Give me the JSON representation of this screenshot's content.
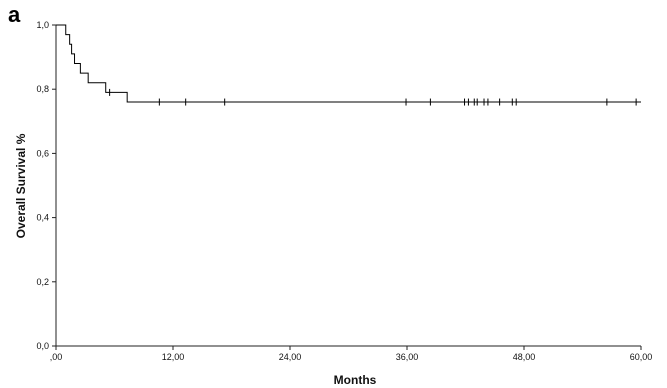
{
  "panel_label": "a",
  "chart_data": {
    "type": "line",
    "subtype": "kaplan-meier step",
    "title": "",
    "xlabel": "Months",
    "ylabel": "Overall Survival %",
    "xlim": [
      0,
      60
    ],
    "ylim": [
      0,
      1
    ],
    "x_ticks": [
      0,
      12,
      24,
      36,
      48,
      60
    ],
    "x_tick_labels": [
      ",00",
      "12,00",
      "24,00",
      "36,00",
      "48,00",
      "60,00"
    ],
    "y_ticks": [
      0,
      0.2,
      0.4,
      0.6,
      0.8,
      1.0
    ],
    "y_tick_labels": [
      "0,0",
      "0,2",
      "0,4",
      "0,6",
      "0,8",
      "1,0"
    ],
    "grid": false,
    "legend": "none",
    "line_color": "#000000",
    "steps": [
      {
        "x": 0.0,
        "y": 1.0
      },
      {
        "x": 1.0,
        "y": 0.97
      },
      {
        "x": 1.4,
        "y": 0.94
      },
      {
        "x": 1.6,
        "y": 0.91
      },
      {
        "x": 1.9,
        "y": 0.88
      },
      {
        "x": 2.5,
        "y": 0.85
      },
      {
        "x": 3.3,
        "y": 0.82
      },
      {
        "x": 5.1,
        "y": 0.79
      },
      {
        "x": 7.3,
        "y": 0.76
      }
    ],
    "end_x": 60,
    "censored": [
      {
        "x": 5.5,
        "y": 0.79
      },
      {
        "x": 10.6,
        "y": 0.76
      },
      {
        "x": 13.3,
        "y": 0.76
      },
      {
        "x": 17.3,
        "y": 0.76
      },
      {
        "x": 35.9,
        "y": 0.76
      },
      {
        "x": 38.4,
        "y": 0.76
      },
      {
        "x": 41.9,
        "y": 0.76
      },
      {
        "x": 42.3,
        "y": 0.76
      },
      {
        "x": 42.9,
        "y": 0.76
      },
      {
        "x": 43.2,
        "y": 0.76
      },
      {
        "x": 43.9,
        "y": 0.76
      },
      {
        "x": 44.3,
        "y": 0.76
      },
      {
        "x": 45.5,
        "y": 0.76
      },
      {
        "x": 46.8,
        "y": 0.76
      },
      {
        "x": 47.2,
        "y": 0.76
      },
      {
        "x": 56.5,
        "y": 0.76
      },
      {
        "x": 59.5,
        "y": 0.76
      }
    ]
  }
}
